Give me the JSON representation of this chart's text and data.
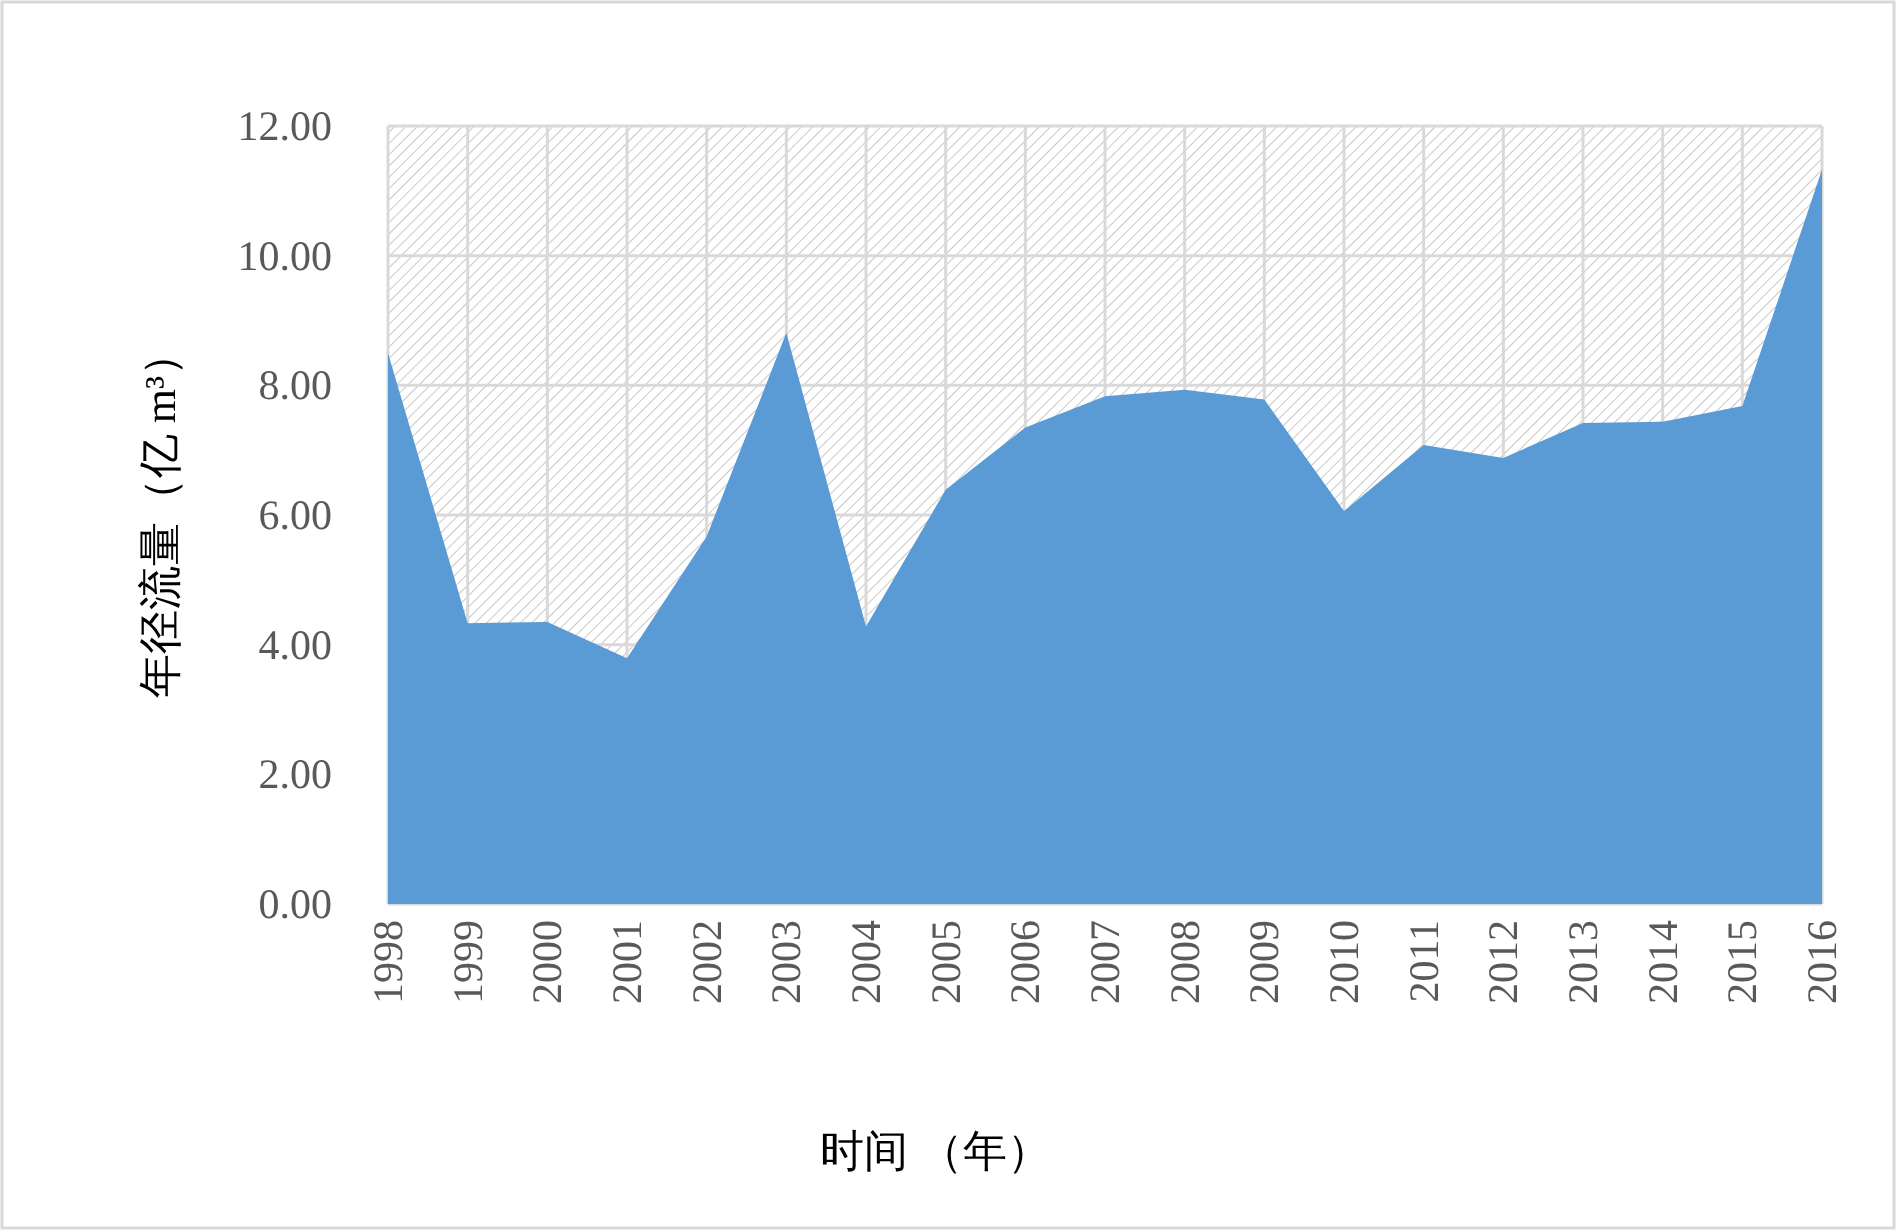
{
  "chart_data": {
    "type": "area",
    "xlabel": "时间 （年）",
    "ylabel": "年径流量（亿 m³）",
    "categories": [
      "1998",
      "1999",
      "2000",
      "2001",
      "2002",
      "2003",
      "2004",
      "2005",
      "2006",
      "2007",
      "2008",
      "2009",
      "2010",
      "2011",
      "2012",
      "2013",
      "2014",
      "2015",
      "2016"
    ],
    "values": [
      8.5,
      4.33,
      4.35,
      3.79,
      5.67,
      8.81,
      4.28,
      6.39,
      7.35,
      7.83,
      7.93,
      7.78,
      6.06,
      7.08,
      6.88,
      7.42,
      7.44,
      7.68,
      11.33
    ],
    "color": "#5b9bd5",
    "ylim": [
      0,
      12
    ],
    "yticks": [
      {
        "value": 0,
        "label": "0.00"
      },
      {
        "value": 2,
        "label": "2.00"
      },
      {
        "value": 4,
        "label": "4.00"
      },
      {
        "value": 6,
        "label": "6.00"
      },
      {
        "value": 8,
        "label": "8.00"
      },
      {
        "value": 10,
        "label": "10.00"
      },
      {
        "value": 12,
        "label": "12.00"
      }
    ],
    "grid": true
  }
}
